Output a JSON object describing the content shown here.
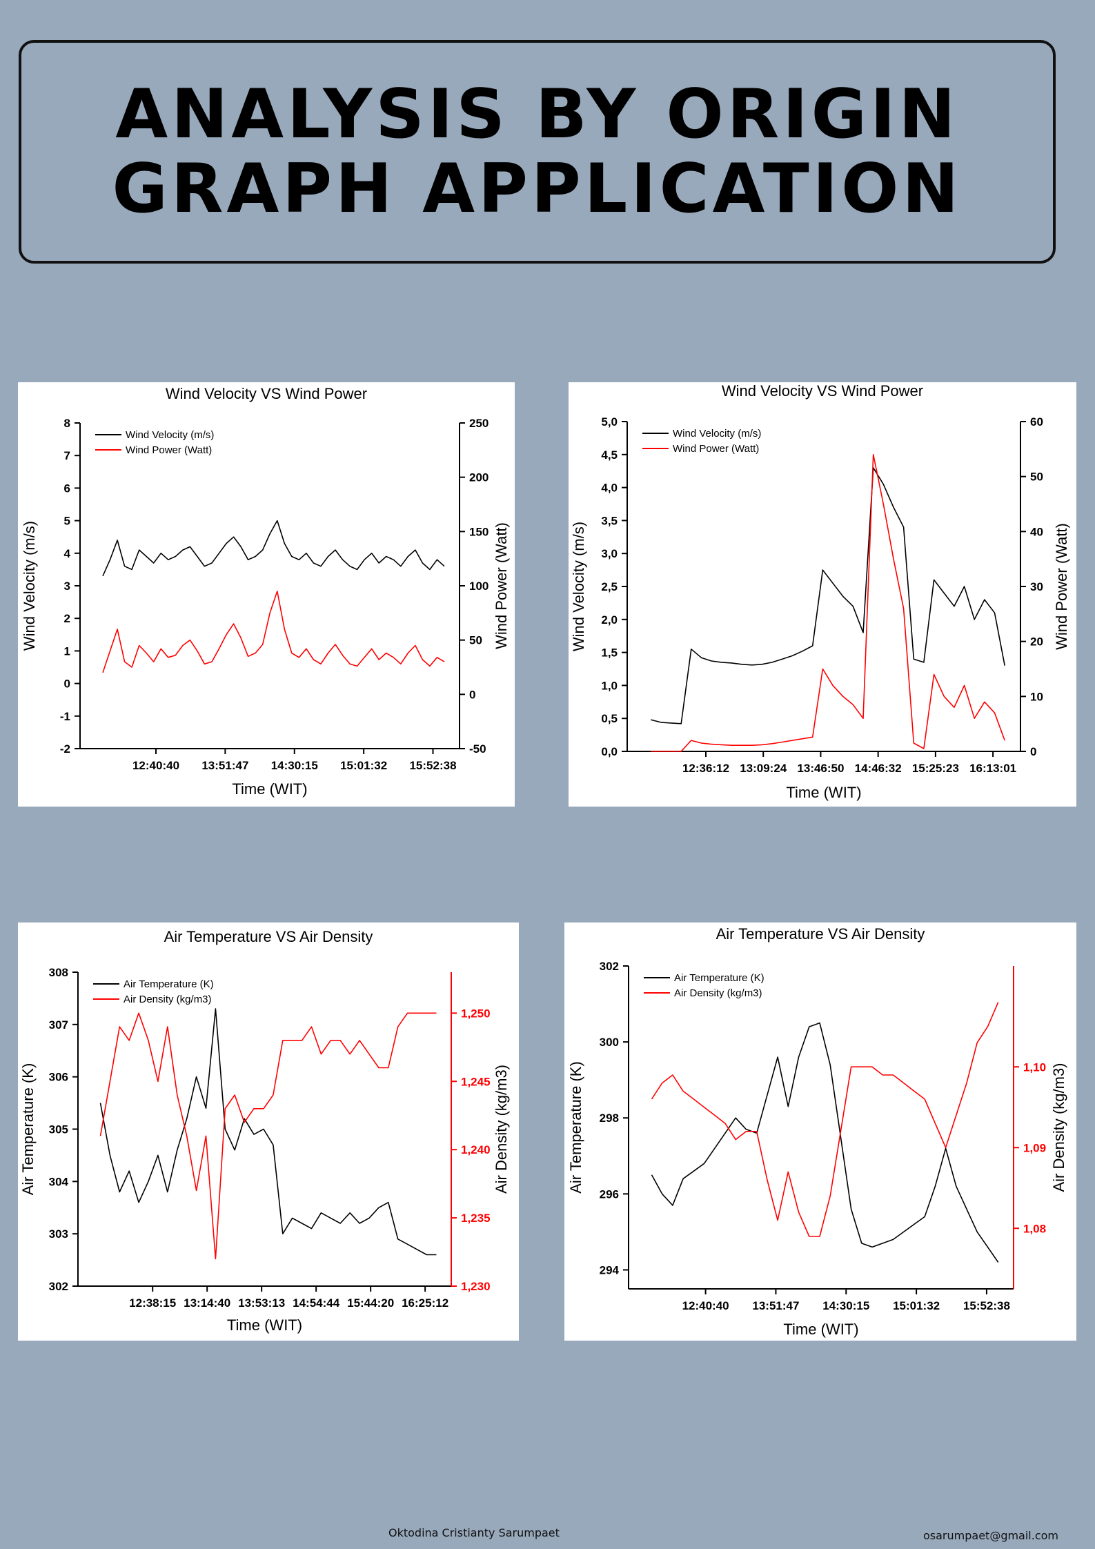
{
  "title": {
    "line1": "ANALYSIS BY ORIGIN",
    "line2": "GRAPH APPLICATION"
  },
  "footer": {
    "author": "Oktodina Cristianty Sarumpaet",
    "email": "osarumpaet@gmail.com"
  },
  "chart_data": [
    {
      "type": "line",
      "title": "Wind Velocity VS Wind Power",
      "xlabel": "Time (WIT)",
      "ylabel": "Wind Velocity (m/s)",
      "y2label": "Wind Power (Watt)",
      "x_ticks": [
        "12:40:40",
        "13:51:47",
        "14:30:15",
        "15:01:32",
        "15:52:38"
      ],
      "ylim": [
        -2,
        8
      ],
      "y_ticks": [
        "-2",
        "-1",
        "0",
        "1",
        "2",
        "3",
        "4",
        "5",
        "6",
        "7",
        "8"
      ],
      "y2lim": [
        -50,
        250
      ],
      "y2_ticks": [
        "-50",
        "0",
        "50",
        "100",
        "150",
        "200",
        "250"
      ],
      "legend_position": "top-left",
      "colors": {
        "velocity": "#000000",
        "power": "#ff0000"
      },
      "series": [
        {
          "name": "Wind Velocity (m/s)",
          "axis": "left",
          "color": "#000000",
          "values": [
            3.3,
            3.8,
            4.4,
            3.6,
            3.5,
            4.1,
            3.9,
            3.7,
            4.0,
            3.8,
            3.9,
            4.1,
            4.2,
            3.9,
            3.6,
            3.7,
            4.0,
            4.3,
            4.5,
            4.2,
            3.8,
            3.9,
            4.1,
            4.6,
            5.0,
            4.3,
            3.9,
            3.8,
            4.0,
            3.7,
            3.6,
            3.9,
            4.1,
            3.8,
            3.6,
            3.5,
            3.8,
            4.0,
            3.7,
            3.9,
            3.8,
            3.6,
            3.9,
            4.1,
            3.7,
            3.5,
            3.8,
            3.6
          ]
        },
        {
          "name": "Wind Power (Watt)",
          "axis": "right",
          "color": "#ff0000",
          "values": [
            20,
            40,
            60,
            30,
            25,
            45,
            38,
            30,
            42,
            34,
            36,
            45,
            50,
            40,
            28,
            30,
            42,
            55,
            65,
            52,
            35,
            38,
            46,
            75,
            95,
            60,
            38,
            34,
            42,
            32,
            28,
            38,
            46,
            36,
            28,
            26,
            34,
            42,
            32,
            38,
            34,
            28,
            38,
            45,
            32,
            26,
            34,
            30
          ]
        }
      ]
    },
    {
      "type": "line",
      "title": "Wind Velocity VS Wind Power",
      "xlabel": "Time (WIT)",
      "ylabel": "Wind Velocity (m/s)",
      "y2label": "Wind Power (Watt)",
      "x_ticks": [
        "12:36:12",
        "13:09:24",
        "13:46:50",
        "14:46:32",
        "15:25:23",
        "16:13:01"
      ],
      "ylim": [
        0,
        5
      ],
      "y_ticks": [
        "0,0",
        "0,5",
        "1,0",
        "1,5",
        "2,0",
        "2,5",
        "3,0",
        "3,5",
        "4,0",
        "4,5",
        "5,0"
      ],
      "y2lim": [
        0,
        60
      ],
      "y2_ticks": [
        "0",
        "10",
        "20",
        "30",
        "40",
        "50",
        "60"
      ],
      "legend_position": "top-left",
      "series": [
        {
          "name": "Wind Velocity (m/s)",
          "axis": "left",
          "color": "#000000",
          "values": [
            0.48,
            0.44,
            0.43,
            0.42,
            1.55,
            1.42,
            1.37,
            1.35,
            1.34,
            1.32,
            1.31,
            1.32,
            1.35,
            1.4,
            1.45,
            1.52,
            1.6,
            2.75,
            2.55,
            2.35,
            2.2,
            1.8,
            4.3,
            4.05,
            3.7,
            3.4,
            1.4,
            1.35,
            2.6,
            2.4,
            2.2,
            2.5,
            2.0,
            2.3,
            2.1,
            1.3
          ]
        },
        {
          "name": "Wind Power (Watt)",
          "axis": "right",
          "color": "#ff0000",
          "values": [
            0,
            0,
            0,
            0,
            2.0,
            1.5,
            1.3,
            1.2,
            1.1,
            1.1,
            1.1,
            1.2,
            1.4,
            1.7,
            2.0,
            2.3,
            2.6,
            15.0,
            12.0,
            10.0,
            8.5,
            6.0,
            54.0,
            45.0,
            35.0,
            26.0,
            1.5,
            0.5,
            14.0,
            10.0,
            8.0,
            12.0,
            6.0,
            9.0,
            7.0,
            2.0
          ]
        }
      ]
    },
    {
      "type": "line",
      "title": "Air Temperature VS Air Density",
      "xlabel": "Time (WIT)",
      "ylabel": "Air Temperature (K)",
      "y2label": "Air Density (kg/m3)",
      "x_ticks": [
        "12:38:15",
        "13:14:40",
        "13:53:13",
        "14:54:44",
        "15:44:20",
        "16:25:12"
      ],
      "ylim": [
        302,
        308
      ],
      "y_ticks": [
        "302",
        "303",
        "304",
        "305",
        "306",
        "307",
        "308"
      ],
      "y2lim": [
        1.23,
        1.253
      ],
      "y2_ticks": [
        "1,230",
        "1,235",
        "1,240",
        "1,245",
        "1,250"
      ],
      "legend_position": "top-left",
      "series": [
        {
          "name": "Air Temperature (K)",
          "axis": "left",
          "color": "#000000",
          "values": [
            305.5,
            304.5,
            303.8,
            304.2,
            303.6,
            304.0,
            304.5,
            303.8,
            304.6,
            305.2,
            306.0,
            305.4,
            307.3,
            305.0,
            304.6,
            305.2,
            304.9,
            305.0,
            304.7,
            303.0,
            303.3,
            303.2,
            303.1,
            303.4,
            303.3,
            303.2,
            303.4,
            303.2,
            303.3,
            303.5,
            303.6,
            302.9,
            302.8,
            302.7,
            302.6,
            302.6
          ]
        },
        {
          "name": "Air Density (kg/m3)",
          "axis": "right",
          "color": "#ff0000",
          "values": [
            1.241,
            1.245,
            1.249,
            1.248,
            1.25,
            1.248,
            1.245,
            1.249,
            1.244,
            1.241,
            1.237,
            1.241,
            1.232,
            1.243,
            1.244,
            1.242,
            1.243,
            1.243,
            1.244,
            1.248,
            1.248,
            1.248,
            1.249,
            1.247,
            1.248,
            1.248,
            1.247,
            1.248,
            1.247,
            1.246,
            1.246,
            1.249,
            1.25,
            1.25,
            1.25,
            1.25
          ]
        }
      ]
    },
    {
      "type": "line",
      "title": "Air Temperature VS Air Density",
      "xlabel": "Time (WIT)",
      "ylabel": "Air Temperature (K)",
      "y2label": "Air Density (kg/m3)",
      "x_ticks": [
        "12:40:40",
        "13:51:47",
        "14:30:15",
        "15:01:32",
        "15:52:38"
      ],
      "ylim": [
        293.5,
        302
      ],
      "y_ticks": [
        "294",
        "296",
        "298",
        "300",
        "302"
      ],
      "y2lim": [
        1.0725,
        1.1125
      ],
      "y2_ticks": [
        "1,08",
        "1,09",
        "1,10"
      ],
      "legend_position": "top-left",
      "series": [
        {
          "name": "Air Temperature (K)",
          "axis": "left",
          "color": "#000000",
          "values": [
            296.5,
            296.0,
            295.7,
            296.4,
            296.6,
            296.8,
            297.2,
            297.6,
            298.0,
            297.7,
            297.6,
            298.6,
            299.6,
            298.3,
            299.6,
            300.4,
            300.5,
            299.4,
            297.5,
            295.6,
            294.7,
            294.6,
            294.7,
            294.8,
            295.0,
            295.2,
            295.4,
            296.2,
            297.2,
            296.2,
            295.6,
            295.0,
            294.6,
            294.2
          ]
        },
        {
          "name": "Air Density (kg/m3)",
          "axis": "right",
          "color": "#ff0000",
          "values": [
            1.096,
            1.098,
            1.099,
            1.097,
            1.096,
            1.095,
            1.094,
            1.093,
            1.091,
            1.092,
            1.092,
            1.086,
            1.081,
            1.087,
            1.082,
            1.079,
            1.079,
            1.084,
            1.092,
            1.1,
            1.1,
            1.1,
            1.099,
            1.099,
            1.098,
            1.097,
            1.096,
            1.093,
            1.09,
            1.094,
            1.098,
            1.103,
            1.105,
            1.108
          ]
        }
      ]
    }
  ]
}
